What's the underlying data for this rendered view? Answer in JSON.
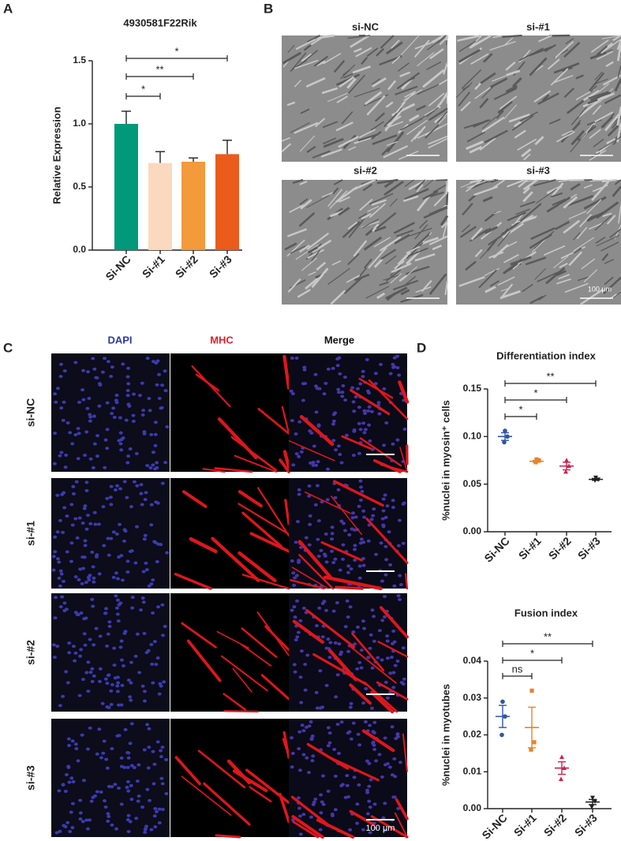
{
  "panel_labels": [
    "A",
    "B",
    "C",
    "D"
  ],
  "chart_data": [
    {
      "type": "bar",
      "title": "4930581F22Rik",
      "y_label": "Relative Expression",
      "categories": [
        "Si-NC",
        "Si-#1",
        "Si-#2",
        "Si-#3"
      ],
      "values": [
        1.0,
        0.69,
        0.7,
        0.76
      ],
      "errors": [
        0.1,
        0.09,
        0.03,
        0.11
      ],
      "colors": [
        "#00997a",
        "#fbd9be",
        "#f29a3c",
        "#ea5b1c"
      ],
      "ylim": [
        0,
        1.5
      ],
      "yticks": [
        {
          "value": 0,
          "label": "0.0"
        },
        0.5,
        {
          "value": 1,
          "label": "1.0"
        },
        1.5
      ],
      "significance": [
        {
          "between": [
            0,
            3
          ],
          "label": "*"
        },
        {
          "between": [
            0,
            2
          ],
          "label": "**"
        },
        {
          "between": [
            0,
            1
          ],
          "label": "*"
        }
      ]
    },
    {
      "type": "dot",
      "title": "Differentiation index",
      "y_label": "%nuclei in myosin⁺ cells",
      "categories": [
        "Si-NC",
        "Si-#1",
        "Si-#2",
        "Si-#3"
      ],
      "groups": [
        {
          "color": "#2f55a6",
          "values": [
            0.106,
            0.1,
            0.094
          ],
          "mean": 0.1,
          "sem": 0.004
        },
        {
          "color": "#e8832a",
          "values": [
            0.076,
            0.075,
            0.073
          ],
          "mean": 0.074,
          "sem": 0.001
        },
        {
          "color": "#d11f4d",
          "values": [
            0.075,
            0.069,
            0.063
          ],
          "mean": 0.069,
          "sem": 0.004
        },
        {
          "color": "#222222",
          "values": [
            0.057,
            0.055,
            0.054
          ],
          "mean": 0.055,
          "sem": 0.001
        }
      ],
      "ylim": [
        0,
        0.15
      ],
      "yticks": [
        {
          "value": 0,
          "label": "0.00"
        },
        0.05,
        {
          "value": 0.1,
          "label": "0.10"
        },
        0.15
      ],
      "significance": [
        {
          "between": [
            0,
            3
          ],
          "label": "**"
        },
        {
          "between": [
            0,
            2
          ],
          "label": "*"
        },
        {
          "between": [
            0,
            1
          ],
          "label": "*"
        }
      ]
    },
    {
      "type": "dot",
      "title": "Fusion index",
      "y_label": "%nuclei in myotubes",
      "categories": [
        "Si-NC",
        "Si-#1",
        "Si-#2",
        "Si-#3"
      ],
      "groups": [
        {
          "color": "#2f55a6",
          "values": [
            0.029,
            0.025,
            0.02
          ],
          "mean": 0.025,
          "sem": 0.003
        },
        {
          "color": "#e8832a",
          "values": [
            0.032,
            0.018,
            0.016
          ],
          "mean": 0.022,
          "sem": 0.0055
        },
        {
          "color": "#d11f4d",
          "values": [
            0.014,
            0.011,
            0.008
          ],
          "mean": 0.011,
          "sem": 0.0017
        },
        {
          "color": "#222222",
          "values": [
            0.003,
            0.002,
            0.0005
          ],
          "mean": 0.0018,
          "sem": 0.0007
        }
      ],
      "ylim": [
        0,
        0.04
      ],
      "yticks": [
        {
          "value": 0,
          "label": "0.00"
        },
        0.01,
        0.02,
        0.03,
        0.04
      ],
      "significance": [
        {
          "between": [
            0,
            3
          ],
          "label": "**"
        },
        {
          "between": [
            0,
            2
          ],
          "label": "*"
        },
        {
          "between": [
            0,
            1
          ],
          "label": "ns"
        }
      ]
    }
  ],
  "panel_b": {
    "labels": [
      "si-NC",
      "si-#1",
      "si-#2",
      "si-#3"
    ],
    "scale": "100 μm"
  },
  "panel_c": {
    "columns": [
      "DAPI",
      "MHC",
      "Merge"
    ],
    "rows": [
      "si-NC",
      "si-#1",
      "si-#2",
      "si-#3"
    ],
    "scale": "100 μm"
  }
}
